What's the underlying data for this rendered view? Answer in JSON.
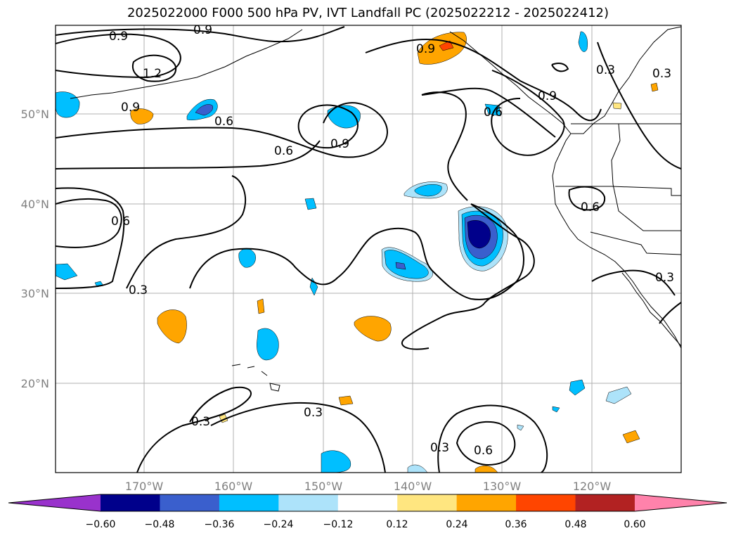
{
  "title": "2025022000 F000 500 hPa PV, IVT Landfall PC (2025022212 - 2025022412)",
  "map": {
    "lat_labels": [
      "50°N",
      "40°N",
      "30°N",
      "20°N"
    ],
    "lon_labels": [
      "170°W",
      "160°W",
      "150°W",
      "140°W",
      "130°W",
      "120°W"
    ],
    "contour_labels": [
      "0.9",
      "0.9",
      "1.2",
      "0.9",
      "0.6",
      "0.6",
      "0.9",
      "0.6",
      "0.9",
      "0.6",
      "0.9",
      "0.3",
      "0.3",
      "0.6",
      "0.3",
      "0.3",
      "0.3",
      "0.3",
      "0.6",
      "0.3"
    ]
  },
  "colorbar": {
    "ticks": [
      "−0.60",
      "−0.48",
      "−0.36",
      "−0.24",
      "−0.12",
      "0.12",
      "0.24",
      "0.36",
      "0.48",
      "0.60"
    ],
    "colors": [
      "#9932CC",
      "#00008B",
      "#3A5FCD",
      "#00BFFF",
      "#ADE3FA",
      "#FFFFFF",
      "#FFE680",
      "#FFA500",
      "#FF4500",
      "#B22222",
      "#FF82AB"
    ]
  }
}
